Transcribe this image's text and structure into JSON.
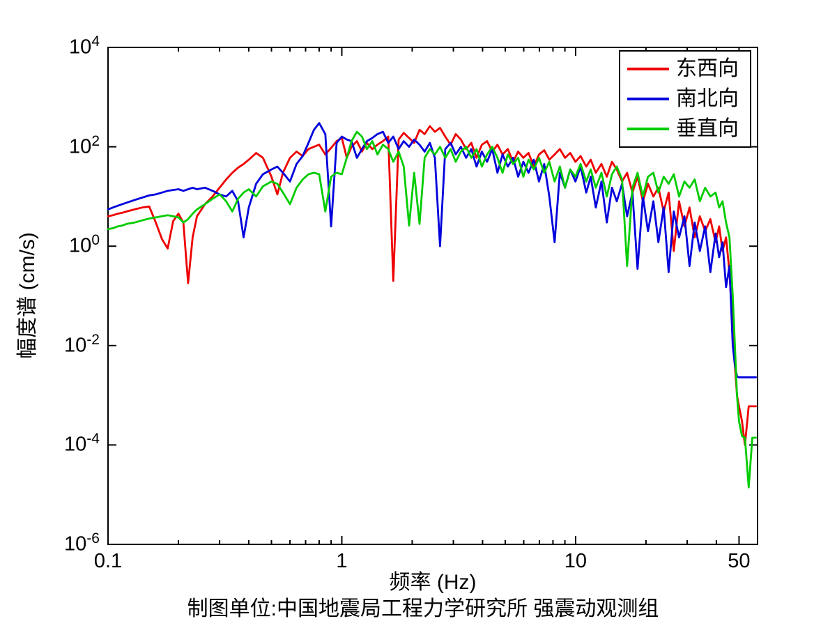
{
  "chart_data": {
    "type": "line",
    "title": "",
    "xlabel": "频率 (Hz)",
    "ylabel": "幅度谱 (cm/s)",
    "caption": "制图单位:中国地震局工程力学研究所 强震动观测组",
    "xscale": "log",
    "yscale": "log",
    "xlim": [
      0.1,
      60
    ],
    "ylim": [
      1e-06,
      10000.0
    ],
    "grid": false,
    "legend_position": "top-right",
    "xticks": {
      "major": [
        0.1,
        1,
        10,
        50
      ],
      "labels": [
        "0.1",
        "1",
        "10",
        "50"
      ],
      "minor": [
        0.2,
        0.3,
        0.4,
        0.5,
        0.6,
        0.7,
        0.8,
        0.9,
        2,
        3,
        4,
        5,
        6,
        7,
        8,
        9,
        20,
        30,
        40
      ]
    },
    "yticks": {
      "base": "10",
      "exponents": [
        4,
        2,
        0,
        -2,
        -4,
        -6
      ]
    },
    "x": [
      0.1,
      0.105,
      0.11,
      0.115,
      0.12,
      0.13,
      0.14,
      0.15,
      0.16,
      0.17,
      0.18,
      0.19,
      0.2,
      0.21,
      0.22,
      0.23,
      0.24,
      0.26,
      0.28,
      0.3,
      0.32,
      0.34,
      0.36,
      0.38,
      0.4,
      0.43,
      0.46,
      0.5,
      0.53,
      0.56,
      0.6,
      0.64,
      0.68,
      0.72,
      0.76,
      0.8,
      0.85,
      0.9,
      0.95,
      1.0,
      1.05,
      1.1,
      1.16,
      1.22,
      1.28,
      1.35,
      1.42,
      1.5,
      1.58,
      1.66,
      1.75,
      1.84,
      1.94,
      2.04,
      2.15,
      2.26,
      2.38,
      2.5,
      2.63,
      2.77,
      2.92,
      3.07,
      3.23,
      3.4,
      3.58,
      3.77,
      3.97,
      4.18,
      4.4,
      4.63,
      4.87,
      5.13,
      5.4,
      5.68,
      5.98,
      6.29,
      6.62,
      6.97,
      7.34,
      7.72,
      8.13,
      8.56,
      9.01,
      9.48,
      9.98,
      10.5,
      11.1,
      11.6,
      12.2,
      12.9,
      13.6,
      14.3,
      15.0,
      15.8,
      16.6,
      17.5,
      18.4,
      19.4,
      20.4,
      21.5,
      22.6,
      23.8,
      25.0,
      26.3,
      27.7,
      29.2,
      30.7,
      32.3,
      34.0,
      35.8,
      37.7,
      39.7,
      41.1,
      42.5,
      44.0,
      45.5,
      47.0,
      48.0,
      49.0,
      50.0,
      51.5,
      53.0,
      55.0,
      57.0,
      59.0
    ],
    "series": [
      {
        "name": "东西向",
        "color": "#ee0000",
        "values": [
          4.0,
          4.2,
          4.5,
          4.7,
          5.0,
          5.5,
          6.0,
          6.3,
          3.0,
          1.4,
          0.9,
          3.2,
          4.5,
          3.0,
          0.18,
          1.5,
          4.0,
          7.0,
          10,
          15,
          22,
          30,
          38,
          45,
          55,
          75,
          60,
          25,
          11,
          30,
          60,
          80,
          65,
          90,
          100,
          110,
          70,
          95,
          130,
          150,
          60,
          100,
          130,
          80,
          120,
          90,
          110,
          130,
          160,
          0.2,
          140,
          190,
          150,
          120,
          220,
          180,
          260,
          200,
          240,
          160,
          110,
          180,
          140,
          90,
          120,
          60,
          110,
          130,
          80,
          110,
          70,
          90,
          50,
          80,
          60,
          75,
          40,
          70,
          85,
          55,
          70,
          90,
          60,
          75,
          50,
          65,
          40,
          55,
          30,
          45,
          25,
          50,
          35,
          20,
          30,
          12,
          25,
          8,
          18,
          10,
          15,
          5,
          12,
          0.8,
          8,
          2.5,
          6,
          1.5,
          4,
          2.0,
          3.5,
          1.2,
          2.5,
          0.8,
          1.5,
          0.3,
          0.02,
          0.004,
          0.001,
          0.0006,
          0.0003,
          0.0001,
          0.0006,
          0.0006,
          0.0006
        ]
      },
      {
        "name": "南北向",
        "color": "#0000dd",
        "values": [
          5.5,
          6.0,
          6.5,
          7.0,
          7.5,
          8.5,
          9.5,
          10.5,
          11,
          12,
          13,
          13.5,
          14,
          13,
          14,
          15,
          14,
          15,
          13,
          11,
          10,
          13,
          8,
          1.5,
          6,
          18,
          28,
          35,
          40,
          30,
          20,
          45,
          65,
          120,
          220,
          300,
          180,
          2.5,
          120,
          160,
          140,
          130,
          60,
          90,
          130,
          150,
          180,
          200,
          120,
          160,
          90,
          130,
          100,
          140,
          110,
          80,
          120,
          60,
          1.0,
          90,
          120,
          70,
          100,
          60,
          90,
          40,
          80,
          50,
          90,
          30,
          70,
          40,
          60,
          25,
          50,
          30,
          55,
          20,
          45,
          10,
          1.2,
          30,
          15,
          35,
          20,
          40,
          12,
          25,
          6,
          20,
          3,
          15,
          8,
          18,
          4,
          12,
          0.35,
          10,
          2,
          8,
          1.2,
          6,
          0.3,
          5,
          1.5,
          4,
          0.4,
          3,
          0.8,
          2.5,
          0.3,
          1.8,
          0.6,
          1.2,
          0.15,
          0.4,
          0.01,
          0.004,
          0.0024,
          0.0023,
          0.0023,
          0.0023,
          0.0023,
          0.0023,
          0.0023
        ]
      },
      {
        "name": "垂直向",
        "color": "#00cc00",
        "values": [
          2.2,
          2.3,
          2.5,
          2.6,
          2.8,
          3.0,
          3.3,
          3.6,
          3.8,
          4.0,
          4.2,
          4.0,
          3.8,
          3.0,
          3.5,
          4.5,
          5.5,
          7,
          9,
          11,
          8,
          5,
          9,
          12,
          14,
          10,
          16,
          20,
          18,
          12,
          7,
          15,
          22,
          28,
          30,
          28,
          5,
          25,
          30,
          28,
          60,
          130,
          200,
          160,
          90,
          130,
          70,
          110,
          90,
          50,
          80,
          40,
          2.6,
          30,
          2.8,
          60,
          90,
          70,
          100,
          60,
          90,
          50,
          80,
          100,
          60,
          90,
          40,
          70,
          100,
          60,
          30,
          70,
          45,
          60,
          25,
          55,
          35,
          60,
          30,
          50,
          20,
          40,
          15,
          35,
          25,
          45,
          20,
          35,
          15,
          30,
          10,
          28,
          40,
          22,
          0.4,
          15,
          30,
          10,
          25,
          30,
          12,
          25,
          18,
          28,
          10,
          20,
          15,
          22,
          8,
          15,
          10,
          12,
          6,
          8,
          3,
          1.5,
          0.1,
          0.01,
          0.001,
          0.0003,
          0.00015,
          0.00014,
          1.4e-05,
          0.00014,
          0.00014
        ]
      }
    ]
  }
}
